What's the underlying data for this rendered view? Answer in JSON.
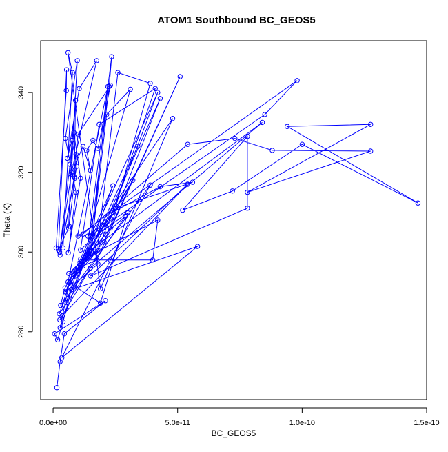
{
  "chart_data": {
    "type": "line",
    "title": "ATOM1 Southbound BC_GEOS5",
    "xlabel": "BC_GEOS5",
    "ylabel": "Theta (K)",
    "xlim": [
      -5e-12,
      1.5e-10
    ],
    "ylim": [
      263,
      353
    ],
    "xticks": [
      0,
      5e-11,
      1e-10,
      1.5e-10
    ],
    "xtick_labels": [
      "0.0e+00",
      "5.0e-11",
      "1.0e-10",
      "1.5e-10"
    ],
    "yticks": [
      280,
      300,
      320,
      340
    ],
    "ytick_labels": [
      "280",
      "300",
      "320",
      "340"
    ],
    "grid": false,
    "legend": "none",
    "series": [
      {
        "color": "#0000ff",
        "marker": "open-circle",
        "points": [
          [
            1.5e-12,
            266
          ],
          [
            2.8e-12,
            272.5
          ],
          [
            4.5e-12,
            279.5
          ],
          [
            2.1e-11,
            287.8
          ],
          [
            6e-13,
            279.5
          ],
          [
            1.8e-12,
            278
          ],
          [
            4e-12,
            282.5
          ],
          [
            7.3e-12,
            290.5
          ],
          [
            5.8e-11,
            301.4
          ],
          [
            3.5e-12,
            273.5
          ],
          [
            2.3e-11,
            298
          ],
          [
            3.9e-11,
            316.8
          ],
          [
            3e-12,
            286.6
          ],
          [
            4.8e-12,
            291
          ],
          [
            1.1e-11,
            298.2
          ],
          [
            2.4e-11,
            316.6
          ],
          [
            2.8e-12,
            281
          ],
          [
            6.5e-12,
            292.2
          ],
          [
            1.2e-11,
            296.5
          ],
          [
            3.4e-11,
            326.5
          ],
          [
            5.2e-12,
            287.3
          ],
          [
            9e-12,
            294
          ],
          [
            1.8e-11,
            300.5
          ],
          [
            4.2e-11,
            340
          ],
          [
            7e-12,
            292
          ],
          [
            1e-11,
            295.5
          ],
          [
            2.1e-11,
            304.5
          ],
          [
            2.9e-11,
            309
          ],
          [
            2.5e-12,
            284.5
          ],
          [
            8e-12,
            294.8
          ],
          [
            1.5e-11,
            299
          ],
          [
            2.2e-11,
            341.5
          ],
          [
            6e-12,
            292.5
          ],
          [
            1.1e-11,
            296.2
          ],
          [
            1.7e-11,
            300
          ],
          [
            1.9e-11,
            290.8
          ],
          [
            4.8e-11,
            333.5
          ],
          [
            1.6e-11,
            304
          ],
          [
            8.5e-12,
            291.5
          ],
          [
            1.9e-11,
            287.2
          ],
          [
            3e-11,
            309.8
          ],
          [
            1.9e-11,
            305
          ],
          [
            1.3e-11,
            298.5
          ],
          [
            4.2e-11,
            308
          ],
          [
            4e-11,
            298
          ],
          [
            1.25e-11,
            298
          ],
          [
            6.3e-12,
            294.6
          ],
          [
            1.55e-11,
            300.3
          ],
          [
            3.2e-11,
            318
          ],
          [
            2e-11,
            306
          ],
          [
            1.05e-11,
            297.2
          ],
          [
            2.4e-11,
            310
          ],
          [
            4.3e-11,
            316.4
          ],
          [
            5.6e-11,
            317.5
          ],
          [
            2.5e-11,
            311
          ],
          [
            3.9e-11,
            342.3
          ],
          [
            2.6e-11,
            345
          ],
          [
            1.8e-11,
            302
          ],
          [
            1e-11,
            296
          ],
          [
            1.75e-11,
            298
          ],
          [
            5.1e-11,
            344
          ],
          [
            2.3e-11,
            306
          ],
          [
            8e-12,
            294.5
          ],
          [
            2.05e-11,
            302.5
          ],
          [
            4.3e-11,
            338.5
          ],
          [
            2.1e-11,
            307.5
          ],
          [
            1.35e-11,
            299.5
          ],
          [
            2.35e-11,
            349
          ],
          [
            2.25e-11,
            341.5
          ],
          [
            1.5e-11,
            303
          ],
          [
            1.1e-11,
            300.5
          ],
          [
            1.85e-11,
            332
          ],
          [
            4.1e-11,
            341
          ],
          [
            2.3e-11,
            308.5
          ],
          [
            1.4e-11,
            304
          ],
          [
            3.1e-11,
            340.8
          ],
          [
            2.15e-11,
            334.5
          ],
          [
            1.6e-11,
            304.5
          ],
          [
            8.5e-11,
            334.5
          ],
          [
            9.8e-11,
            343
          ],
          [
            1e-11,
            304
          ],
          [
            1.2e-11,
            304.5
          ],
          [
            5.4e-11,
            327
          ],
          [
            7.3e-11,
            328.5
          ],
          [
            8.8e-11,
            325.5
          ],
          [
            1.275e-10,
            325.3
          ],
          [
            7.8e-11,
            315
          ],
          [
            1.275e-10,
            332
          ],
          [
            9.4e-11,
            331.5
          ],
          [
            1.465e-10,
            312.3
          ],
          [
            1e-10,
            327
          ],
          [
            7.2e-11,
            315.3
          ],
          [
            5.2e-11,
            310.5
          ],
          [
            7.8e-11,
            329
          ],
          [
            7.8e-11,
            311
          ],
          [
            1.5e-11,
            294
          ],
          [
            5.4e-11,
            317
          ],
          [
            3.6e-12,
            284
          ],
          [
            2.7e-12,
            283
          ],
          [
            1.5e-11,
            296
          ],
          [
            8.4e-11,
            332.5
          ],
          [
            1.4e-11,
            300
          ],
          [
            5e-12,
            290
          ],
          [
            1.8e-11,
            297
          ],
          [
            6e-12,
            350
          ],
          [
            7.8e-12,
            345
          ],
          [
            4e-12,
            301
          ],
          [
            1.2e-12,
            301
          ],
          [
            5.3e-12,
            340.5
          ],
          [
            5.4e-12,
            345.7
          ],
          [
            2.1e-12,
            300.5
          ],
          [
            6.2e-12,
            306
          ],
          [
            7.6e-12,
            328
          ],
          [
            9.5e-12,
            321.5
          ],
          [
            2.8e-12,
            299.2
          ],
          [
            8.5e-12,
            318.8
          ],
          [
            9e-12,
            338
          ],
          [
            6.8e-12,
            322
          ],
          [
            2.6e-12,
            300
          ],
          [
            7.4e-12,
            320
          ],
          [
            9.7e-12,
            348
          ],
          [
            4.9e-12,
            328.5
          ],
          [
            9.2e-12,
            315
          ],
          [
            6.1e-12,
            299.8
          ],
          [
            1.1e-11,
            318.5
          ],
          [
            8.3e-12,
            330
          ],
          [
            5.7e-12,
            323.5
          ],
          [
            1.05e-11,
            341
          ],
          [
            1.75e-11,
            348
          ],
          [
            7.2e-12,
            319.5
          ],
          [
            1.2e-11,
            326.5
          ],
          [
            1.5e-11,
            320.5
          ],
          [
            1.35e-11,
            325.5
          ],
          [
            1.6e-11,
            328
          ],
          [
            1.8e-11,
            326
          ],
          [
            2.3e-11,
            341.8
          ],
          [
            1e-11,
            329.5
          ],
          [
            9.2e-12,
            324.5
          ],
          [
            8.7e-12,
            318.5
          ],
          [
            6.4e-12,
            306.5
          ]
        ]
      }
    ]
  }
}
